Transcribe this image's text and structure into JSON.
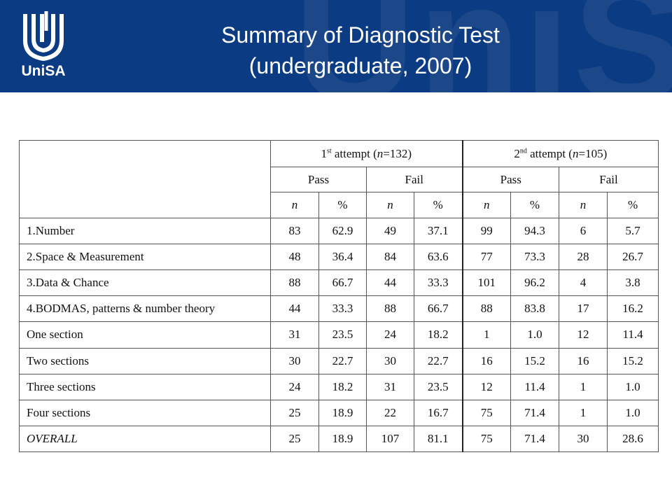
{
  "header": {
    "logo_text": "UniSA",
    "watermark_text": "UniSA",
    "title_line1": "Summary of Diagnostic Test",
    "title_line2": "(undergraduate, 2007)",
    "bg_color": "#0b3b82"
  },
  "table": {
    "attempt1": {
      "ord": "1",
      "sup": "st",
      "rest": " attempt (",
      "n": "n",
      "eq": "=132)"
    },
    "attempt2": {
      "ord": "2",
      "sup": "nd",
      "rest": " attempt (",
      "n": "n",
      "eq": "=105)"
    },
    "pass_label": "Pass",
    "fail_label": "Fail",
    "n_label": "n",
    "pct_label": "%",
    "rows": [
      {
        "label": "1.Number",
        "values": [
          "83",
          "62.9",
          "49",
          "37.1",
          "99",
          "94.3",
          "6",
          "5.7"
        ]
      },
      {
        "label": "2.Space & Measurement",
        "values": [
          "48",
          "36.4",
          "84",
          "63.6",
          "77",
          "73.3",
          "28",
          "26.7"
        ]
      },
      {
        "label": "3.Data & Chance",
        "values": [
          "88",
          "66.7",
          "44",
          "33.3",
          "101",
          "96.2",
          "4",
          "3.8"
        ]
      },
      {
        "label": "4.BODMAS, patterns & number theory",
        "values": [
          "44",
          "33.3",
          "88",
          "66.7",
          "88",
          "83.8",
          "17",
          "16.2"
        ]
      },
      {
        "label": "One section",
        "values": [
          "31",
          "23.5",
          "24",
          "18.2",
          "1",
          "1.0",
          "12",
          "11.4"
        ]
      },
      {
        "label": "Two sections",
        "values": [
          "30",
          "22.7",
          "30",
          "22.7",
          "16",
          "15.2",
          "16",
          "15.2"
        ]
      },
      {
        "label": "Three sections",
        "values": [
          "24",
          "18.2",
          "31",
          "23.5",
          "12",
          "11.4",
          "1",
          "1.0"
        ]
      },
      {
        "label": "Four sections",
        "values": [
          "25",
          "18.9",
          "22",
          "16.7",
          "75",
          "71.4",
          "1",
          "1.0"
        ]
      },
      {
        "label": "OVERALL",
        "values": [
          "25",
          "18.9",
          "107",
          "81.1",
          "75",
          "71.4",
          "30",
          "28.6"
        ]
      }
    ]
  }
}
